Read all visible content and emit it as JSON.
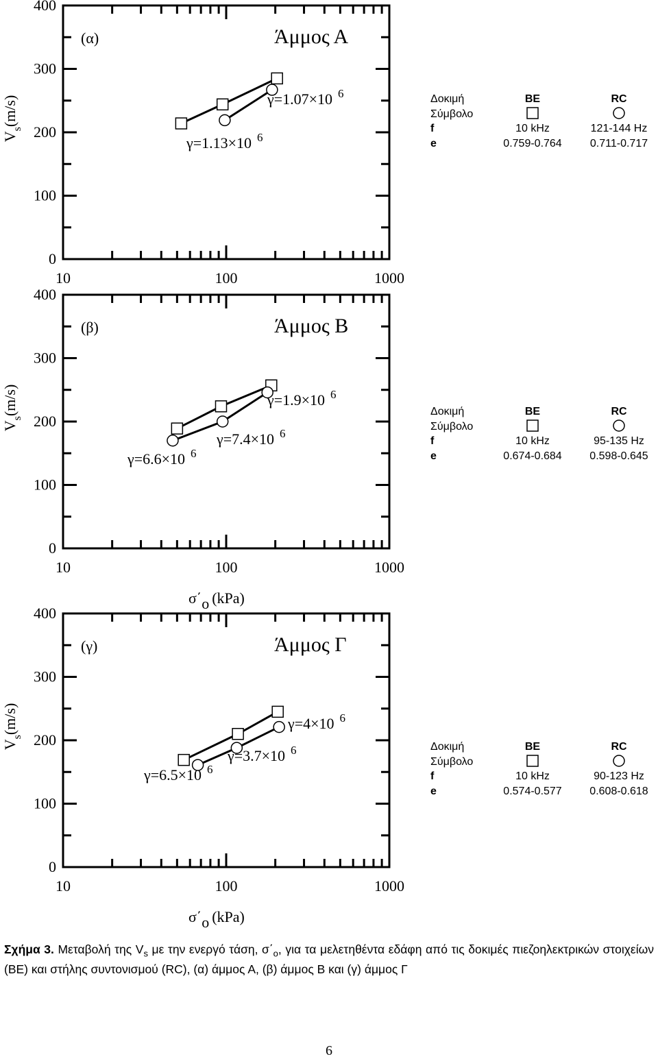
{
  "chart_data": [
    {
      "type": "scatter",
      "panel_label": "(α)",
      "title": "Άμμος Α",
      "ylabel": "V",
      "ylabel_sub": "s",
      "ylabel_unit": "(m/s)",
      "xlim": [
        10,
        1000
      ],
      "xticks": [
        10,
        100,
        1000
      ],
      "xlog": true,
      "ylim": [
        0,
        400
      ],
      "yticks": [
        0,
        100,
        200,
        300,
        400
      ],
      "series": [
        {
          "name": "BE",
          "marker": "square",
          "x": [
            53,
            95,
            205
          ],
          "values": [
            214,
            244,
            285
          ]
        },
        {
          "name": "RC",
          "marker": "circle",
          "x": [
            98,
            191
          ],
          "values": [
            219,
            267
          ]
        }
      ],
      "annotations": [
        {
          "text": "γ=1.07×10",
          "sup": "6"
        },
        {
          "text": "γ=1.13×10",
          "sup": "6"
        }
      ],
      "legend_table": {
        "header_label": "Δοκιμή",
        "symbol_label": "Σύμβολο",
        "rows": [
          [
            "f",
            "10 kHz",
            "121-144 Hz"
          ],
          [
            "e",
            "0.759-0.764",
            "0.711-0.717"
          ]
        ]
      }
    },
    {
      "type": "scatter",
      "panel_label": "(β)",
      "title": "Άμμος Β",
      "ylabel": "V",
      "ylabel_sub": "s",
      "ylabel_unit": "(m/s)",
      "xlabel": "σ΄",
      "xlabel_sub": "o",
      "xlabel_unit": "(kPa)",
      "xlim": [
        10,
        1000
      ],
      "xticks": [
        10,
        100,
        1000
      ],
      "xlog": true,
      "ylim": [
        0,
        400
      ],
      "yticks": [
        0,
        100,
        200,
        300,
        400
      ],
      "series": [
        {
          "name": "BE",
          "marker": "square",
          "x": [
            50,
            93,
            189
          ],
          "values": [
            189,
            224,
            257
          ]
        },
        {
          "name": "RC",
          "marker": "circle",
          "x": [
            47,
            95,
            179
          ],
          "values": [
            170,
            200,
            246
          ]
        }
      ],
      "annotations": [
        {
          "text": "γ=1.9×10",
          "sup": "6"
        },
        {
          "text": "γ=7.4×10",
          "sup": "6"
        },
        {
          "text": "γ=6.6×10",
          "sup": "6"
        }
      ],
      "legend_table": {
        "header_label": "Δοκιμή",
        "symbol_label": "Σύμβολο",
        "rows": [
          [
            "f",
            "10 kHz",
            "95-135 Hz"
          ],
          [
            "e",
            "0.674-0.684",
            "0.598-0.645"
          ]
        ]
      }
    },
    {
      "type": "scatter",
      "panel_label": "(γ)",
      "title": "Άμμος Γ",
      "ylabel": "V",
      "ylabel_sub": "s",
      "ylabel_unit": "(m/s)",
      "xlabel": "σ΄",
      "xlabel_sub": "o",
      "xlabel_unit": "(kPa)",
      "xlim": [
        10,
        1000
      ],
      "xticks": [
        10,
        100,
        1000
      ],
      "xlog": true,
      "ylim": [
        0,
        400
      ],
      "yticks": [
        0,
        100,
        200,
        300,
        400
      ],
      "series": [
        {
          "name": "BE",
          "marker": "square",
          "x": [
            55,
            118,
            207
          ],
          "values": [
            169,
            210,
            245
          ]
        },
        {
          "name": "RC",
          "marker": "circle",
          "x": [
            67,
            116,
            211
          ],
          "values": [
            161,
            188,
            221
          ]
        }
      ],
      "annotations": [
        {
          "text": "γ=4×10",
          "sup": "6"
        },
        {
          "text": "γ=3.7×10",
          "sup": "6"
        },
        {
          "text": "γ=6.5×10",
          "sup": "6"
        }
      ],
      "legend_table": {
        "header_label": "Δοκιμή",
        "symbol_label": "Σύμβολο",
        "rows": [
          [
            "f",
            "10 kHz",
            "90-123 Hz"
          ],
          [
            "e",
            "0.574-0.577",
            "0.608-0.618"
          ]
        ]
      }
    }
  ],
  "caption": {
    "label": "Σχήμα 3.",
    "parts": [
      {
        "text": " Μεταβολή της V"
      },
      {
        "text": "s",
        "sub": true
      },
      {
        "text": " με την ενεργό τάση, σ΄"
      },
      {
        "text": "o",
        "sub": true
      },
      {
        "text": ", για τα μελετηθέντα εδάφη από τις δοκιμές πιεζοηλεκτρικών στοιχείων (BE) και στήλης συντονισμού (RC), (α) άμμος Α, (β) άμμος Β και (γ) άμμος Γ"
      }
    ]
  },
  "page_number": "6"
}
